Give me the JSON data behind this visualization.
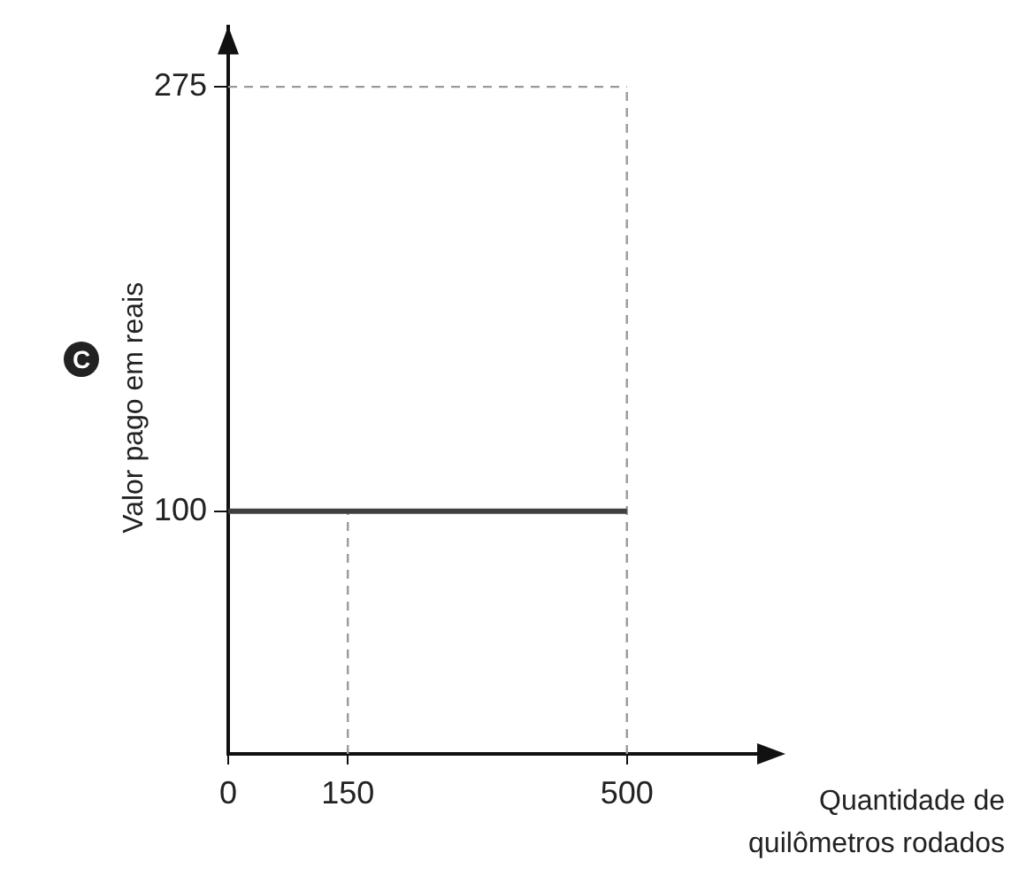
{
  "chart_data": {
    "type": "line",
    "xlabel": "Quantidade de quilômetros rodados",
    "ylabel": "Valor pago em reais",
    "x": [
      0,
      500
    ],
    "series": [
      {
        "color": "#3f3f3f",
        "values": [
          100,
          100
        ]
      }
    ],
    "xlim": [
      0,
      690
    ],
    "ylim": [
      0,
      300
    ],
    "xticks": [
      0,
      150,
      500
    ],
    "yticks": [
      100,
      275
    ],
    "grid": false,
    "legend": false,
    "marker": "none",
    "line_style": "solid",
    "ref_lines": [
      {
        "axis": "x",
        "value": 150,
        "color": "#9a9a9a",
        "line_style": "dashed"
      },
      {
        "axis": "x",
        "value": 500,
        "color": "#9a9a9a",
        "line_style": "dashed"
      },
      {
        "axis": "y",
        "value": 275,
        "color": "#9a9a9a",
        "line_style": "dashed"
      }
    ],
    "annotations": [
      "C"
    ]
  }
}
